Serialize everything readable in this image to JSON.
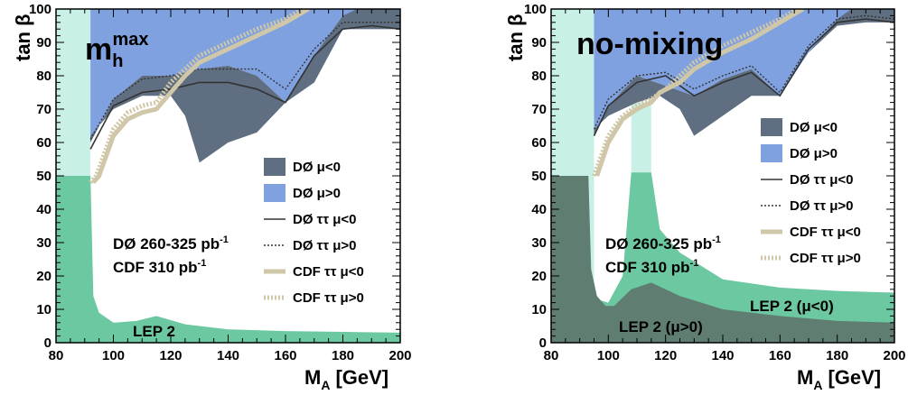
{
  "chart_data": [
    {
      "type": "area",
      "panel": "left",
      "title": "m",
      "title_sub": "h",
      "title_sup": "max",
      "xlabel": "M",
      "xlabel_sub": "A",
      "xlabel_unit": "[GeV]",
      "ylabel": "tan β",
      "xlim": [
        80,
        200
      ],
      "ylim": [
        0,
        100
      ],
      "xticks": [
        "80",
        "100",
        "120",
        "140",
        "160",
        "180",
        "200"
      ],
      "yticks": [
        "0",
        "10",
        "20",
        "30",
        "40",
        "50",
        "60",
        "70",
        "80",
        "90",
        "100"
      ],
      "colors": {
        "lep": "#6cc8a0",
        "lep_band": "#c8f0e6",
        "d0_mu_pos": "#7fa1e0",
        "d0_mu_neg": "#5f6e80",
        "cdf": "#cfc7a8"
      },
      "regions": {
        "lep_band": [
          [
            80,
            0
          ],
          [
            92,
            0
          ],
          [
            92,
            100
          ],
          [
            80,
            100
          ]
        ],
        "lep": [
          [
            80,
            0
          ],
          [
            200,
            0
          ],
          [
            200,
            3
          ],
          [
            185,
            3.2
          ],
          [
            160,
            3.5
          ],
          [
            140,
            4
          ],
          [
            125,
            5.5
          ],
          [
            115,
            8
          ],
          [
            108,
            6.5
          ],
          [
            100,
            6
          ],
          [
            95,
            9
          ],
          [
            93,
            14
          ],
          [
            92,
            50
          ],
          [
            80,
            50
          ]
        ],
        "d0_mu_pos": [
          [
            92,
            100
          ],
          [
            200,
            100
          ],
          [
            200,
            94
          ],
          [
            190,
            94
          ],
          [
            180,
            94
          ],
          [
            170,
            78
          ],
          [
            160,
            72
          ],
          [
            150,
            80
          ],
          [
            140,
            83
          ],
          [
            130,
            82
          ],
          [
            120,
            80
          ],
          [
            110,
            80
          ],
          [
            100,
            73
          ],
          [
            92,
            60
          ]
        ],
        "d0_mu_neg": [
          [
            92,
            62
          ],
          [
            100,
            70
          ],
          [
            110,
            74
          ],
          [
            120,
            74
          ],
          [
            125,
            68
          ],
          [
            130,
            54
          ],
          [
            140,
            60
          ],
          [
            150,
            63
          ],
          [
            160,
            72
          ],
          [
            170,
            86
          ],
          [
            180,
            98
          ],
          [
            185,
            100
          ],
          [
            200,
            100
          ],
          [
            200,
            94
          ],
          [
            190,
            94
          ],
          [
            180,
            94
          ],
          [
            170,
            78
          ],
          [
            160,
            72
          ],
          [
            150,
            80
          ],
          [
            140,
            83
          ],
          [
            130,
            82
          ],
          [
            120,
            80
          ],
          [
            110,
            80
          ],
          [
            100,
            73
          ],
          [
            92,
            60
          ]
        ]
      },
      "curves": {
        "d0_tautau_mu_neg": [
          [
            92,
            58
          ],
          [
            100,
            71
          ],
          [
            110,
            75
          ],
          [
            120,
            76
          ],
          [
            130,
            78
          ],
          [
            140,
            78
          ],
          [
            150,
            76
          ],
          [
            160,
            72
          ],
          [
            170,
            86
          ],
          [
            180,
            94
          ],
          [
            190,
            95
          ],
          [
            200,
            94
          ]
        ],
        "d0_tautau_mu_pos": [
          [
            92,
            61
          ],
          [
            100,
            73
          ],
          [
            110,
            79
          ],
          [
            120,
            80
          ],
          [
            130,
            82
          ],
          [
            140,
            82
          ],
          [
            150,
            82
          ],
          [
            160,
            76
          ],
          [
            170,
            88
          ],
          [
            180,
            96
          ],
          [
            190,
            96
          ],
          [
            200,
            96
          ]
        ],
        "cdf_tautau_mu_neg": [
          [
            93,
            48
          ],
          [
            95,
            50
          ],
          [
            100,
            62
          ],
          [
            105,
            67
          ],
          [
            110,
            69
          ],
          [
            115,
            70
          ],
          [
            120,
            75
          ],
          [
            125,
            80
          ],
          [
            130,
            84
          ],
          [
            140,
            88
          ],
          [
            150,
            92
          ],
          [
            160,
            96
          ],
          [
            168,
            100
          ]
        ],
        "cdf_tautau_mu_pos": [
          [
            92,
            48
          ],
          [
            94,
            50
          ],
          [
            100,
            64
          ],
          [
            105,
            69
          ],
          [
            110,
            71
          ],
          [
            115,
            72
          ],
          [
            120,
            78
          ],
          [
            125,
            82
          ],
          [
            130,
            86
          ],
          [
            140,
            90
          ],
          [
            150,
            94
          ],
          [
            160,
            97
          ],
          [
            166,
            100
          ]
        ]
      },
      "legend": [
        {
          "label": "DØ μ<0",
          "kind": "box",
          "color": "#5f6e80"
        },
        {
          "label": "DØ μ>0",
          "kind": "box",
          "color": "#7fa1e0"
        },
        {
          "label": "DØ ττ μ<0",
          "kind": "line",
          "color": "#333333"
        },
        {
          "label": "DØ ττ μ>0",
          "kind": "dotted",
          "color": "#333333"
        },
        {
          "label": "CDF ττ μ<0",
          "kind": "thick",
          "color": "#cfc7a8"
        },
        {
          "label": "CDF ττ μ>0",
          "kind": "thickdotted",
          "color": "#cfc7a8"
        }
      ],
      "annotations": {
        "lumi_d0": "DØ 260-325 pb",
        "lumi_d0_sup": "-1",
        "lumi_cdf": "CDF 310 pb",
        "lumi_cdf_sup": "-1",
        "lep_label": "LEP 2"
      }
    },
    {
      "type": "area",
      "panel": "right",
      "title": "no-mixing",
      "xlabel": "M",
      "xlabel_sub": "A",
      "xlabel_unit": "[GeV]",
      "ylabel": "tan β",
      "xlim": [
        80,
        200
      ],
      "ylim": [
        0,
        100
      ],
      "xticks": [
        "80",
        "100",
        "120",
        "140",
        "160",
        "180",
        "200"
      ],
      "yticks": [
        "0",
        "10",
        "20",
        "30",
        "40",
        "50",
        "60",
        "70",
        "80",
        "90",
        "100"
      ],
      "colors": {
        "lep": "#6cc8a0",
        "lep_band": "#c8f0e6",
        "lep_mu_pos": "#5f7d70",
        "d0_mu_pos": "#7fa1e0",
        "d0_mu_neg": "#5f6e80",
        "cdf": "#cfc7a8"
      },
      "regions": {
        "lep_band": [
          [
            80,
            0
          ],
          [
            95,
            0
          ],
          [
            95,
            100
          ],
          [
            80,
            100
          ]
        ],
        "lep_band_mid": [
          [
            108,
            0
          ],
          [
            115,
            0
          ],
          [
            115,
            72
          ],
          [
            108,
            72
          ]
        ],
        "lep_mu_neg": [
          [
            80,
            0
          ],
          [
            200,
            0
          ],
          [
            200,
            15
          ],
          [
            180,
            15.5
          ],
          [
            160,
            16.5
          ],
          [
            140,
            19
          ],
          [
            125,
            27
          ],
          [
            118,
            34
          ],
          [
            115,
            51
          ],
          [
            108,
            51
          ],
          [
            105,
            20
          ],
          [
            100,
            12
          ],
          [
            96,
            13
          ],
          [
            94,
            18
          ],
          [
            93,
            50
          ],
          [
            80,
            50
          ]
        ],
        "lep_mu_pos": [
          [
            80,
            0
          ],
          [
            200,
            0
          ],
          [
            200,
            6
          ],
          [
            180,
            6.5
          ],
          [
            160,
            8
          ],
          [
            140,
            10
          ],
          [
            125,
            14
          ],
          [
            115,
            18
          ],
          [
            108,
            16
          ],
          [
            102,
            11
          ],
          [
            99,
            11
          ],
          [
            96,
            14
          ],
          [
            94,
            22
          ],
          [
            93,
            50
          ],
          [
            80,
            50
          ]
        ],
        "d0_mu_pos": [
          [
            95,
            100
          ],
          [
            200,
            100
          ],
          [
            200,
            96
          ],
          [
            190,
            96
          ],
          [
            180,
            95
          ],
          [
            170,
            87
          ],
          [
            160,
            74
          ],
          [
            150,
            82
          ],
          [
            140,
            79
          ],
          [
            130,
            74
          ],
          [
            120,
            77
          ],
          [
            110,
            80
          ],
          [
            100,
            71
          ],
          [
            95,
            62
          ]
        ],
        "d0_mu_neg": [
          [
            95,
            64
          ],
          [
            100,
            68
          ],
          [
            110,
            72
          ],
          [
            118,
            74
          ],
          [
            125,
            70
          ],
          [
            130,
            62
          ],
          [
            140,
            68
          ],
          [
            150,
            74
          ],
          [
            160,
            74
          ],
          [
            170,
            87
          ],
          [
            180,
            97
          ],
          [
            185,
            100
          ],
          [
            200,
            100
          ],
          [
            200,
            96
          ],
          [
            190,
            96
          ],
          [
            180,
            95
          ],
          [
            170,
            87
          ],
          [
            160,
            74
          ],
          [
            150,
            82
          ],
          [
            140,
            79
          ],
          [
            130,
            74
          ],
          [
            120,
            77
          ],
          [
            110,
            80
          ],
          [
            100,
            71
          ],
          [
            95,
            62
          ]
        ]
      },
      "curves": {
        "d0_tautau_mu_neg": [
          [
            95,
            62
          ],
          [
            100,
            71
          ],
          [
            110,
            78
          ],
          [
            120,
            80
          ],
          [
            130,
            74
          ],
          [
            140,
            78
          ],
          [
            150,
            81
          ],
          [
            160,
            74
          ],
          [
            170,
            88
          ],
          [
            180,
            96
          ],
          [
            190,
            97
          ],
          [
            200,
            96
          ]
        ],
        "d0_tautau_mu_pos": [
          [
            95,
            64
          ],
          [
            100,
            73
          ],
          [
            110,
            80
          ],
          [
            120,
            81
          ],
          [
            130,
            76
          ],
          [
            140,
            80
          ],
          [
            150,
            83
          ],
          [
            160,
            75
          ],
          [
            170,
            89
          ],
          [
            180,
            97
          ],
          [
            190,
            98
          ],
          [
            200,
            97
          ]
        ],
        "cdf_tautau_mu_neg": [
          [
            96,
            50
          ],
          [
            100,
            60
          ],
          [
            105,
            67
          ],
          [
            110,
            70
          ],
          [
            115,
            72
          ],
          [
            118,
            75
          ],
          [
            125,
            78
          ],
          [
            130,
            82
          ],
          [
            140,
            87
          ],
          [
            150,
            91
          ],
          [
            160,
            96
          ],
          [
            168,
            100
          ]
        ],
        "cdf_tautau_mu_pos": [
          [
            95,
            50
          ],
          [
            100,
            62
          ],
          [
            105,
            68
          ],
          [
            110,
            71
          ],
          [
            115,
            73
          ],
          [
            120,
            76
          ],
          [
            125,
            80
          ],
          [
            130,
            84
          ],
          [
            140,
            89
          ],
          [
            150,
            93
          ],
          [
            160,
            97
          ],
          [
            166,
            100
          ]
        ]
      },
      "legend": [
        {
          "label": "DØ μ<0",
          "kind": "box",
          "color": "#5f6e80"
        },
        {
          "label": "DØ μ>0",
          "kind": "box",
          "color": "#7fa1e0"
        },
        {
          "label": "DØ ττ μ<0",
          "kind": "line",
          "color": "#333333"
        },
        {
          "label": "DØ ττ μ>0",
          "kind": "dotted",
          "color": "#333333"
        },
        {
          "label": "CDF ττ μ<0",
          "kind": "thick",
          "color": "#cfc7a8"
        },
        {
          "label": "CDF ττ μ>0",
          "kind": "thickdotted",
          "color": "#cfc7a8"
        }
      ],
      "annotations": {
        "lumi_d0": "DØ 260-325 pb",
        "lumi_d0_sup": "-1",
        "lumi_cdf": "CDF 310 pb",
        "lumi_cdf_sup": "-1",
        "lep_neg_label": "LEP 2 (μ<0)",
        "lep_pos_label": "LEP 2 (μ>0)"
      }
    }
  ]
}
